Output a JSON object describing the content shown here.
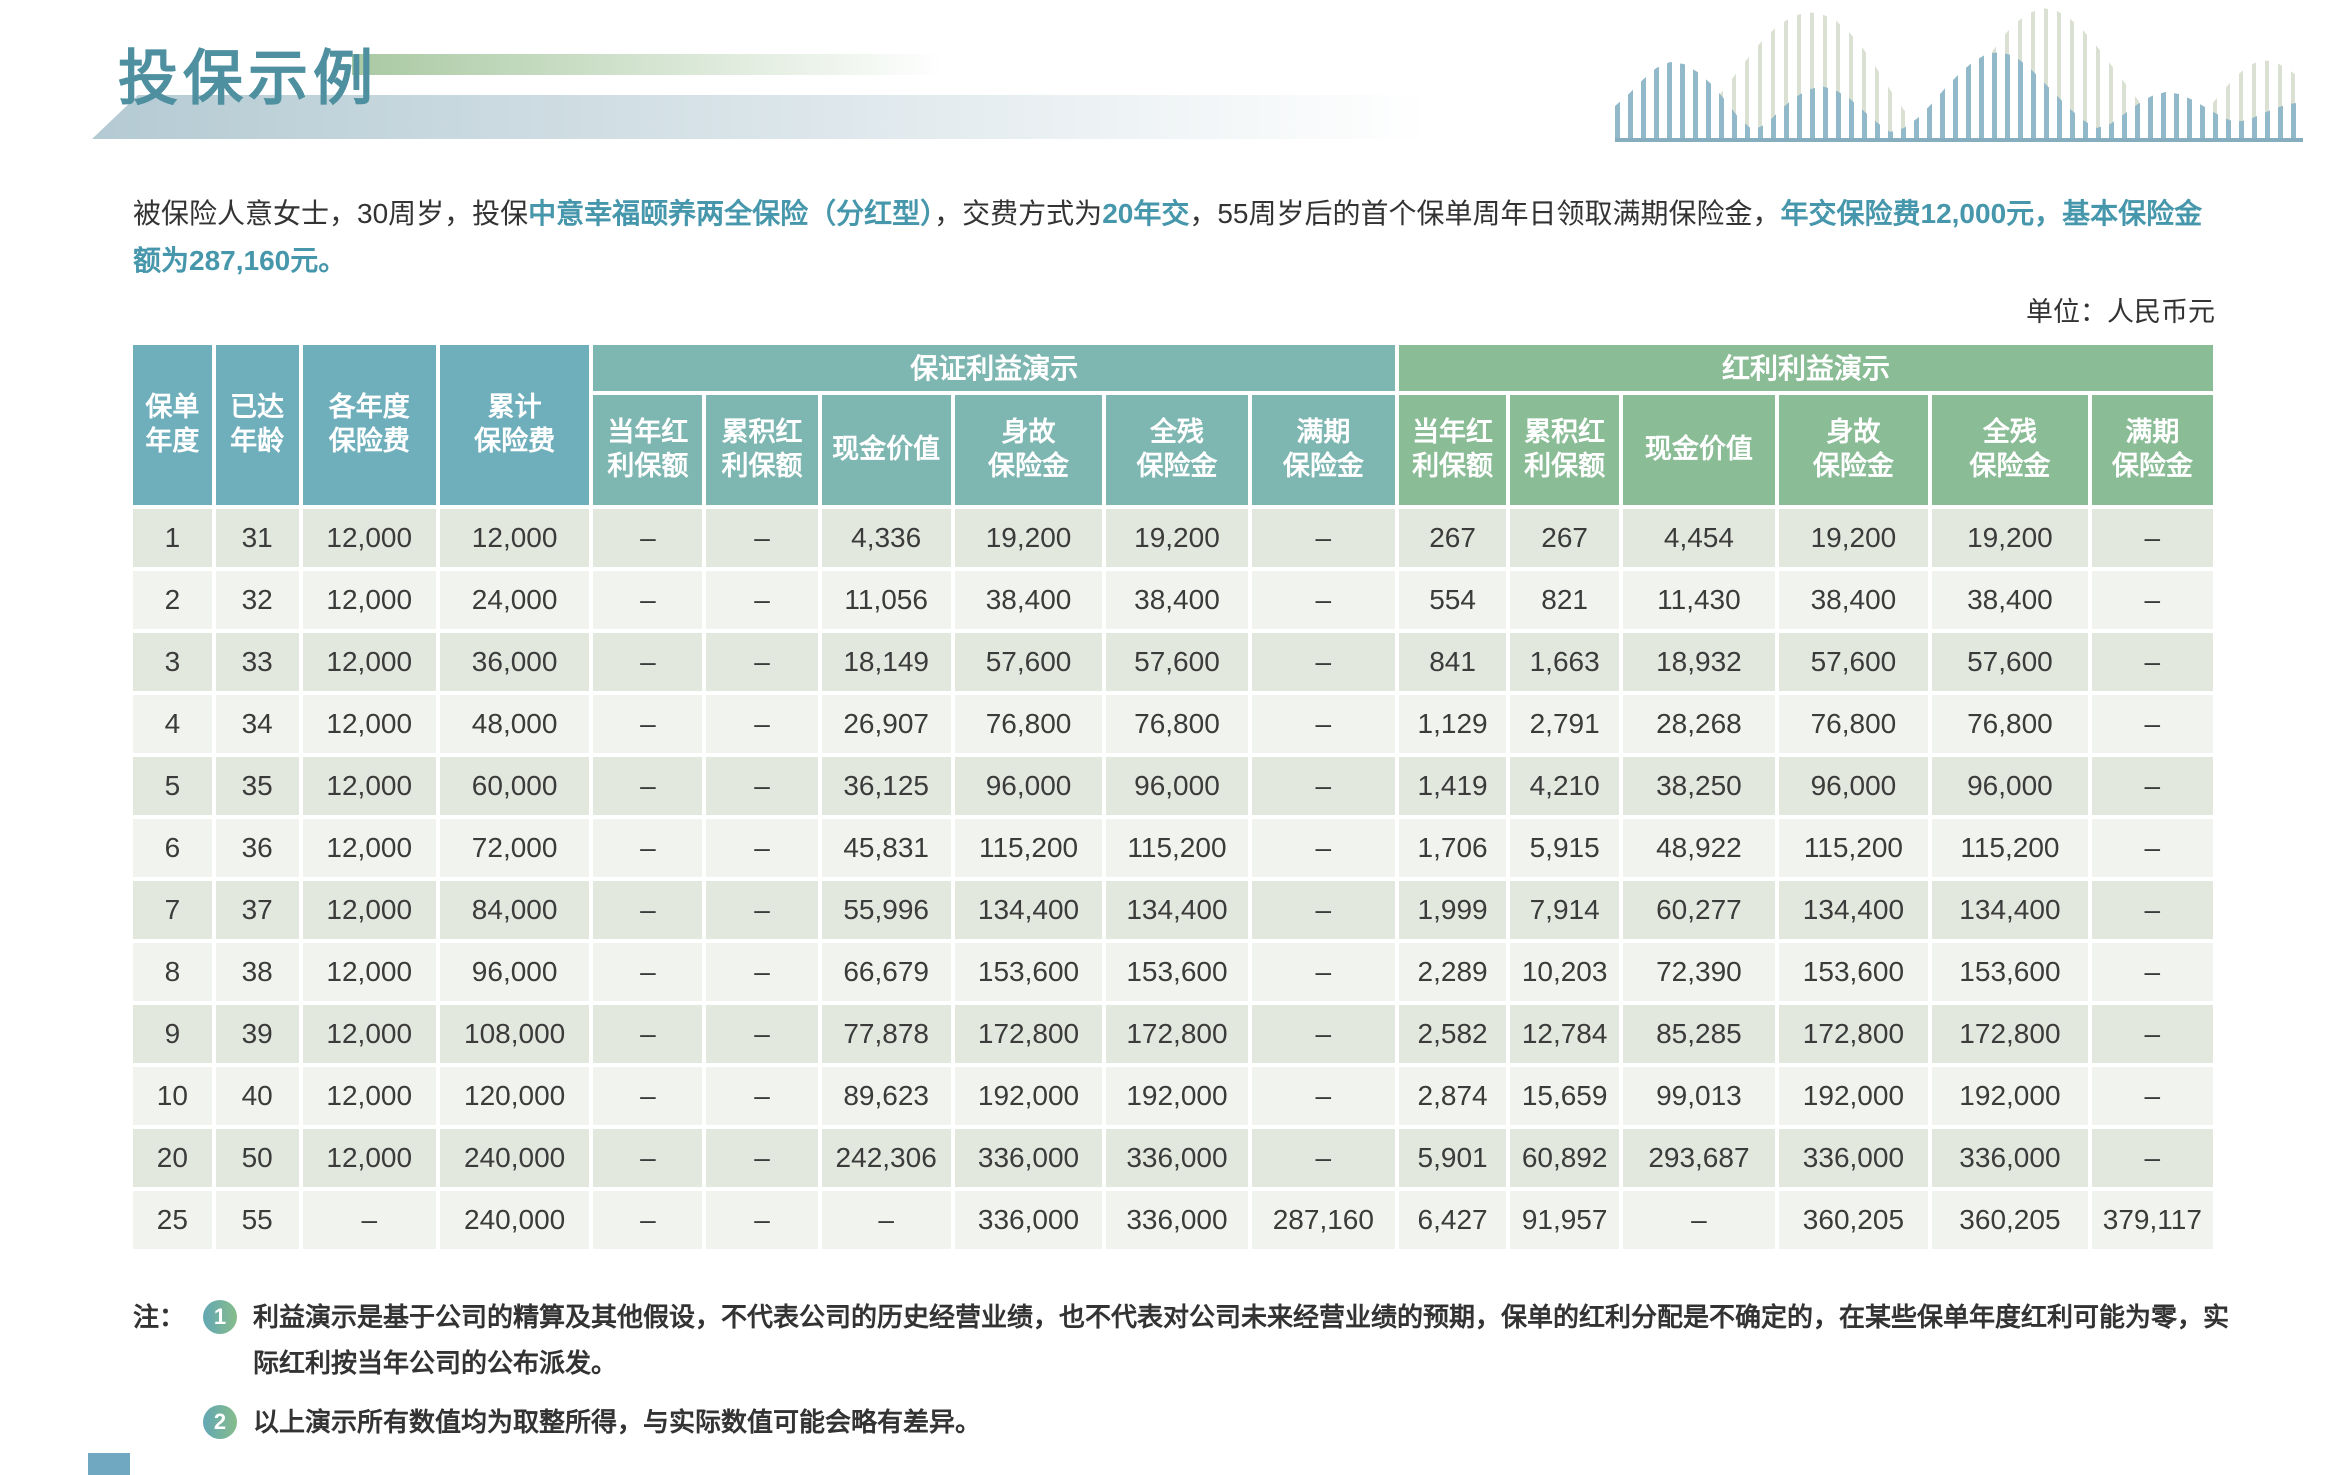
{
  "title": "投保示例",
  "unit_label": "单位：人民币元",
  "intro_segments": [
    {
      "text": "被保险人意女士，30周岁，投保",
      "accent": false
    },
    {
      "text": "中意幸福颐养两全保险（分红型）",
      "accent": true
    },
    {
      "text": "，交费方式为",
      "accent": false
    },
    {
      "text": "20年交",
      "accent": true
    },
    {
      "text": "，55周岁后的首个保单周年日领取满期保险金，",
      "accent": false
    },
    {
      "text": "年交保险费12,000元，基本保险金额为287,160元。",
      "accent": true
    }
  ],
  "table": {
    "fixed_headers": [
      "保单\n年度",
      "已达\n年龄",
      "各年度\n保险费",
      "累计\n保险费"
    ],
    "groups": [
      {
        "label": "保证利益演示",
        "columns": [
          "当年红\n利保额",
          "累积红\n利保额",
          "现金价值",
          "身故\n保险金",
          "全残\n保险金",
          "满期\n保险金"
        ]
      },
      {
        "label": "红利利益演示",
        "columns": [
          "当年红\n利保额",
          "累积红\n利保额",
          "现金价值",
          "身故\n保险金",
          "全残\n保险金",
          "满期\n保险金"
        ]
      }
    ],
    "rows": [
      [
        "1",
        "31",
        "12,000",
        "12,000",
        "–",
        "–",
        "4,336",
        "19,200",
        "19,200",
        "–",
        "267",
        "267",
        "4,454",
        "19,200",
        "19,200",
        "–"
      ],
      [
        "2",
        "32",
        "12,000",
        "24,000",
        "–",
        "–",
        "11,056",
        "38,400",
        "38,400",
        "–",
        "554",
        "821",
        "11,430",
        "38,400",
        "38,400",
        "–"
      ],
      [
        "3",
        "33",
        "12,000",
        "36,000",
        "–",
        "–",
        "18,149",
        "57,600",
        "57,600",
        "–",
        "841",
        "1,663",
        "18,932",
        "57,600",
        "57,600",
        "–"
      ],
      [
        "4",
        "34",
        "12,000",
        "48,000",
        "–",
        "–",
        "26,907",
        "76,800",
        "76,800",
        "–",
        "1,129",
        "2,791",
        "28,268",
        "76,800",
        "76,800",
        "–"
      ],
      [
        "5",
        "35",
        "12,000",
        "60,000",
        "–",
        "–",
        "36,125",
        "96,000",
        "96,000",
        "–",
        "1,419",
        "4,210",
        "38,250",
        "96,000",
        "96,000",
        "–"
      ],
      [
        "6",
        "36",
        "12,000",
        "72,000",
        "–",
        "–",
        "45,831",
        "115,200",
        "115,200",
        "–",
        "1,706",
        "5,915",
        "48,922",
        "115,200",
        "115,200",
        "–"
      ],
      [
        "7",
        "37",
        "12,000",
        "84,000",
        "–",
        "–",
        "55,996",
        "134,400",
        "134,400",
        "–",
        "1,999",
        "7,914",
        "60,277",
        "134,400",
        "134,400",
        "–"
      ],
      [
        "8",
        "38",
        "12,000",
        "96,000",
        "–",
        "–",
        "66,679",
        "153,600",
        "153,600",
        "–",
        "2,289",
        "10,203",
        "72,390",
        "153,600",
        "153,600",
        "–"
      ],
      [
        "9",
        "39",
        "12,000",
        "108,000",
        "–",
        "–",
        "77,878",
        "172,800",
        "172,800",
        "–",
        "2,582",
        "12,784",
        "85,285",
        "172,800",
        "172,800",
        "–"
      ],
      [
        "10",
        "40",
        "12,000",
        "120,000",
        "–",
        "–",
        "89,623",
        "192,000",
        "192,000",
        "–",
        "2,874",
        "15,659",
        "99,013",
        "192,000",
        "192,000",
        "–"
      ],
      [
        "20",
        "50",
        "12,000",
        "240,000",
        "–",
        "–",
        "242,306",
        "336,000",
        "336,000",
        "–",
        "5,901",
        "60,892",
        "293,687",
        "336,000",
        "336,000",
        "–"
      ],
      [
        "25",
        "55",
        "–",
        "240,000",
        "–",
        "–",
        "–",
        "336,000",
        "336,000",
        "287,160",
        "6,427",
        "91,957",
        "–",
        "360,205",
        "360,205",
        "379,117"
      ]
    ]
  },
  "notes": {
    "label": "注：",
    "items": [
      {
        "badge": "1",
        "text": "利益演示是基于公司的精算及其他假设，不代表公司的历史经营业绩，也不代表对公司未来经营业绩的预期，保单的红利分配是不确定的，在某些保单年度红利可能为零，实际红利按当年公司的公布派发。"
      },
      {
        "badge": "2",
        "text": "以上演示所有数值均为取整所得，与实际数值可能会略有差异。"
      }
    ]
  },
  "colors": {
    "title_teal": "#4E8FA0",
    "accent_teal": "#4697AB",
    "header_fixed": "#6FAFBC",
    "header_guaranteed": "#7EB6B1",
    "header_dividend": "#8ABC96",
    "row_dark": "#E3E8DF",
    "row_light": "#F1F4EE"
  }
}
